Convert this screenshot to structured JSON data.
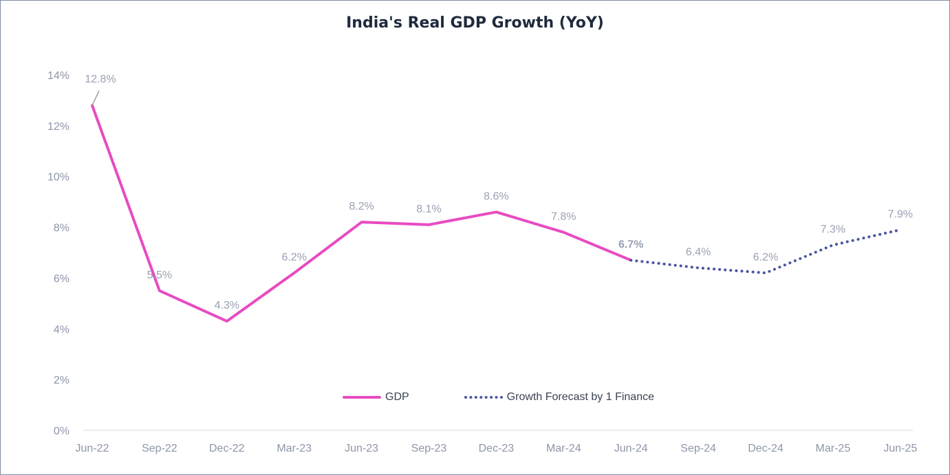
{
  "chart_data": {
    "type": "line",
    "title": "India's Real GDP Growth (YoY)",
    "categories": [
      "Jun-22",
      "Sep-22",
      "Dec-22",
      "Mar-23",
      "Jun-23",
      "Sep-23",
      "Dec-23",
      "Mar-24",
      "Jun-24",
      "Sep-24",
      "Dec-24",
      "Mar-25",
      "Jun-25"
    ],
    "ylim": [
      0,
      14
    ],
    "yticks": [
      0,
      2,
      4,
      6,
      8,
      10,
      12,
      14
    ],
    "ytick_labels": [
      "0%",
      "2%",
      "4%",
      "6%",
      "8%",
      "10%",
      "12%",
      "14%"
    ],
    "grid": false,
    "legend_position": "bottom-center",
    "series": [
      {
        "name": "GDP",
        "color": "#e84bc2",
        "style": "solid",
        "values": [
          12.8,
          5.5,
          4.3,
          6.2,
          8.2,
          8.1,
          8.6,
          7.8,
          6.7,
          null,
          null,
          null,
          null
        ],
        "labels": [
          "12.8%",
          "5.5%",
          "4.3%",
          "6.2%",
          "8.2%",
          "8.1%",
          "8.6%",
          "7.8%",
          "6.7%",
          null,
          null,
          null,
          null
        ]
      },
      {
        "name": "Growth Forecast by 1 Finance",
        "color": "#4a55a2",
        "style": "dotted",
        "values": [
          null,
          null,
          null,
          null,
          null,
          null,
          null,
          null,
          6.7,
          6.4,
          6.2,
          7.3,
          7.9
        ],
        "labels": [
          null,
          null,
          null,
          null,
          null,
          null,
          null,
          null,
          null,
          "6.4%",
          "6.2%",
          "7.3%",
          "7.9%"
        ]
      }
    ]
  }
}
